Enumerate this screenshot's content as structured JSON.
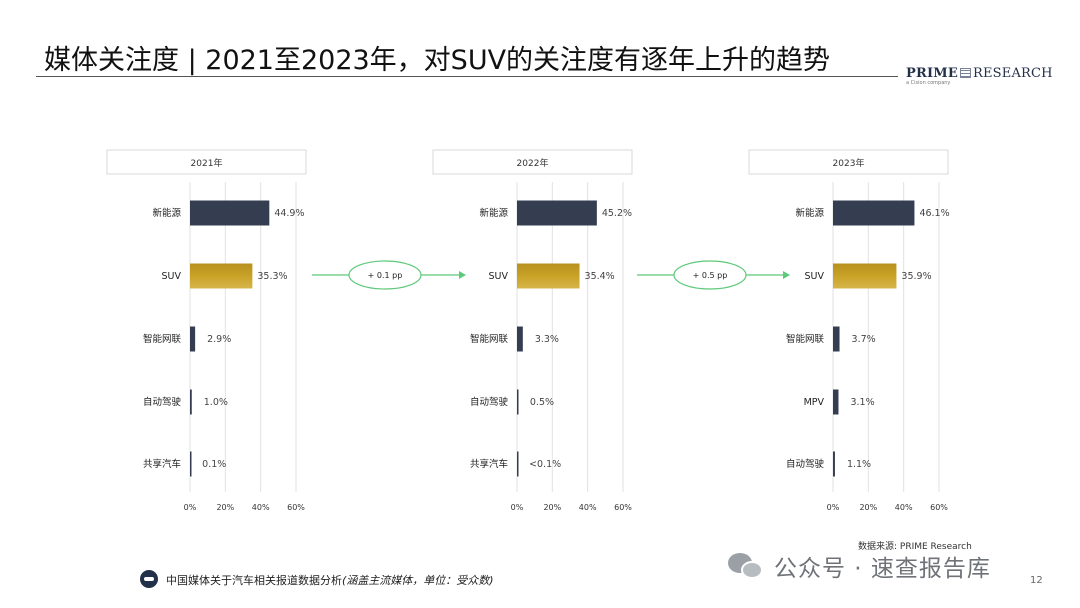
{
  "header": {
    "title": "媒体关注度 | 2021至2023年，对SUV的关注度有逐年上升的趋势",
    "logo_bold": "PRIME",
    "logo_rest": "RESEARCH",
    "logo_sub": "a Cision company"
  },
  "colors": {
    "navy": "#353e50",
    "gold": "#c9a227",
    "arrow_green": "#5ec97a",
    "grid": "#e2e2e2"
  },
  "chart_data": [
    {
      "type": "bar",
      "orientation": "horizontal",
      "title": "2021年",
      "categories": [
        "新能源",
        "SUV",
        "智能网联",
        "自动驾驶",
        "共享汽车"
      ],
      "values": [
        44.9,
        35.3,
        2.9,
        1.0,
        0.1
      ],
      "labels": [
        "44.9%",
        "35.3%",
        "2.9%",
        "1.0%",
        "0.1%"
      ],
      "highlight": [
        "SUV"
      ],
      "xlim": [
        0,
        60
      ],
      "xticks": [
        "0%",
        "20%",
        "40%",
        "60%"
      ],
      "grid": true
    },
    {
      "type": "bar",
      "orientation": "horizontal",
      "title": "2022年",
      "categories": [
        "新能源",
        "SUV",
        "智能网联",
        "自动驾驶",
        "共享汽车"
      ],
      "values": [
        45.2,
        35.4,
        3.3,
        0.5,
        0.05
      ],
      "labels": [
        "45.2%",
        "35.4%",
        "3.3%",
        "0.5%",
        "<0.1%"
      ],
      "highlight": [
        "SUV"
      ],
      "xlim": [
        0,
        60
      ],
      "xticks": [
        "0%",
        "20%",
        "40%",
        "60%"
      ],
      "grid": true
    },
    {
      "type": "bar",
      "orientation": "horizontal",
      "title": "2023年",
      "categories": [
        "新能源",
        "SUV",
        "智能网联",
        "MPV",
        "自动驾驶"
      ],
      "values": [
        46.1,
        35.9,
        3.7,
        3.1,
        1.1
      ],
      "labels": [
        "46.1%",
        "35.9%",
        "3.7%",
        "3.1%",
        "1.1%"
      ],
      "highlight": [
        "SUV"
      ],
      "xlim": [
        0,
        60
      ],
      "xticks": [
        "0%",
        "20%",
        "40%",
        "60%"
      ],
      "grid": true
    }
  ],
  "arrows": [
    {
      "label": "+ 0.1 pp"
    },
    {
      "label": "+ 0.5 pp"
    }
  ],
  "source": "数据来源: PRIME Research",
  "footer": {
    "text": "中国媒体关于汽车相关报道数据分析",
    "note": "(涵盖主流媒体，单位：受众数)"
  },
  "watermark": "公众号 · 速查报告库",
  "page_number": "12"
}
